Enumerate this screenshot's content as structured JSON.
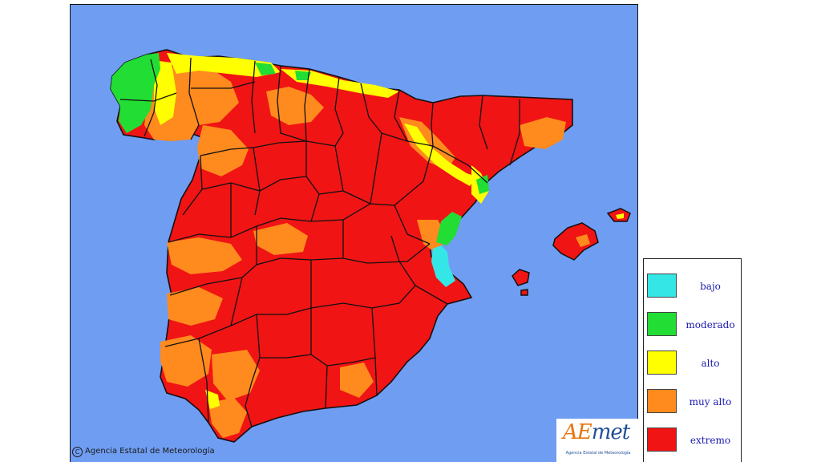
{
  "map": {
    "copyright": "Agencia Estatal de Meteorología",
    "sea_color": "#6f9df2"
  },
  "logo": {
    "mark_ae": "AE",
    "mark_met": "met",
    "subtitle": "Agencia Estatal de Meteorología"
  },
  "legend": {
    "items": [
      {
        "label": "bajo",
        "color": "#35e6e6"
      },
      {
        "label": "moderado",
        "color": "#22dd33"
      },
      {
        "label": "alto",
        "color": "#ffff00"
      },
      {
        "label": "muy alto",
        "color": "#ff8a1e"
      },
      {
        "label": "extremo",
        "color": "#f01414"
      }
    ]
  }
}
